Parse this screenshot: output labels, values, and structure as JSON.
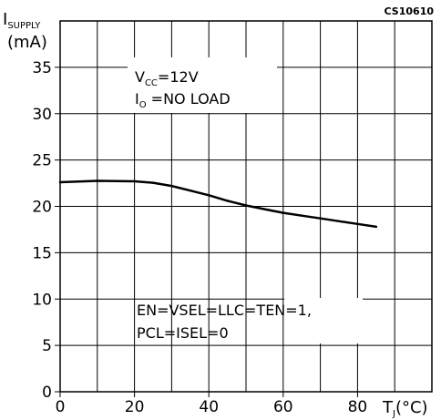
{
  "chart_data": {
    "type": "line",
    "figure_code": "CS10610",
    "ylabel": {
      "main": "I",
      "sub": "SUPPLY",
      "unit": "(mA)"
    },
    "xlabel": {
      "main": "T",
      "sub": "J",
      "unit": "(°C)"
    },
    "xlim": [
      0,
      100
    ],
    "ylim": [
      0,
      40
    ],
    "x_ticks": [
      0,
      20,
      40,
      60,
      80
    ],
    "y_ticks": [
      0,
      5,
      10,
      15,
      20,
      25,
      30,
      35
    ],
    "grid": true,
    "annotations": {
      "top": {
        "line1": {
          "main": "V",
          "sub": "CC",
          "rest": "=12V"
        },
        "line2": {
          "main": "I",
          "sub": "O",
          "rest": " =NO  LOAD"
        }
      },
      "bottom": {
        "line1": "EN=VSEL=LLC=TEN=1,",
        "line2": "PCL=ISEL=0"
      }
    },
    "series": [
      {
        "x": [
          0,
          10,
          20,
          25,
          30,
          35,
          40,
          45,
          50,
          55,
          60,
          65,
          70,
          75,
          80,
          85
        ],
        "y": [
          22.6,
          22.75,
          22.7,
          22.55,
          22.2,
          21.7,
          21.2,
          20.6,
          20.1,
          19.7,
          19.3,
          19.0,
          18.7,
          18.4,
          18.1,
          17.8
        ]
      }
    ]
  }
}
